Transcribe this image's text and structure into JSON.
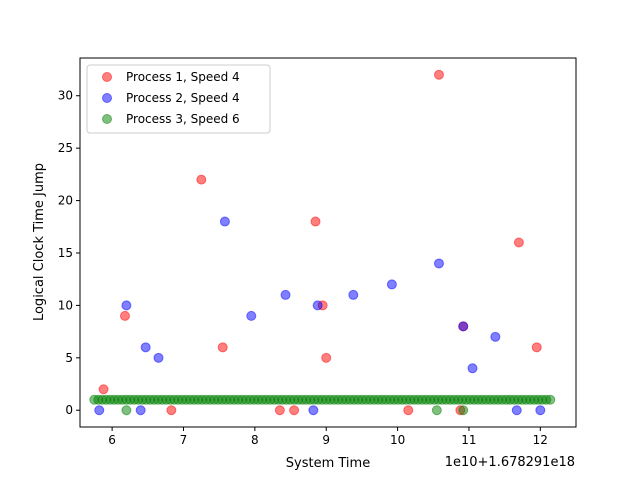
{
  "chart_data": {
    "type": "scatter",
    "xlabel": "System Time",
    "ylabel": "Logical Clock Time Jump",
    "x_offset_label": "1e10+1.678291e18",
    "xlim": [
      5.55,
      12.5
    ],
    "ylim": [
      -1.6,
      33.6
    ],
    "xticks": [
      6,
      7,
      8,
      9,
      10,
      11,
      12
    ],
    "yticks": [
      0,
      5,
      10,
      15,
      20,
      25,
      30
    ],
    "legend_position": "top-left",
    "series": [
      {
        "name": "Process 1, Speed 4",
        "color": "#ff0000",
        "points": [
          [
            5.88,
            2
          ],
          [
            6.18,
            9
          ],
          [
            6.83,
            0
          ],
          [
            7.25,
            22
          ],
          [
            7.55,
            6
          ],
          [
            8.35,
            0
          ],
          [
            8.55,
            0
          ],
          [
            8.85,
            18
          ],
          [
            8.95,
            10
          ],
          [
            9.0,
            5
          ],
          [
            10.15,
            0
          ],
          [
            10.58,
            32
          ],
          [
            10.88,
            0
          ],
          [
            10.92,
            8
          ],
          [
            11.7,
            16
          ],
          [
            11.95,
            6
          ]
        ]
      },
      {
        "name": "Process 2, Speed 4",
        "color": "#0000ff",
        "points": [
          [
            5.82,
            0
          ],
          [
            6.2,
            10
          ],
          [
            6.4,
            0
          ],
          [
            6.47,
            6
          ],
          [
            6.65,
            5
          ],
          [
            7.58,
            18
          ],
          [
            7.95,
            9
          ],
          [
            8.43,
            11
          ],
          [
            8.82,
            0
          ],
          [
            8.88,
            10
          ],
          [
            9.38,
            11
          ],
          [
            9.92,
            12
          ],
          [
            10.58,
            14
          ],
          [
            10.92,
            8
          ],
          [
            11.05,
            4
          ],
          [
            11.37,
            7
          ],
          [
            11.67,
            0
          ],
          [
            12.0,
            0
          ]
        ]
      },
      {
        "name": "Process 3, Speed 6",
        "color": "#008000",
        "points": [
          [
            6.2,
            0
          ],
          [
            10.55,
            0
          ],
          [
            10.92,
            0
          ]
        ]
      }
    ],
    "baseline_band": {
      "y": 1,
      "x_from": 5.75,
      "x_to": 12.15,
      "series": "Process 3, Speed 6"
    }
  }
}
